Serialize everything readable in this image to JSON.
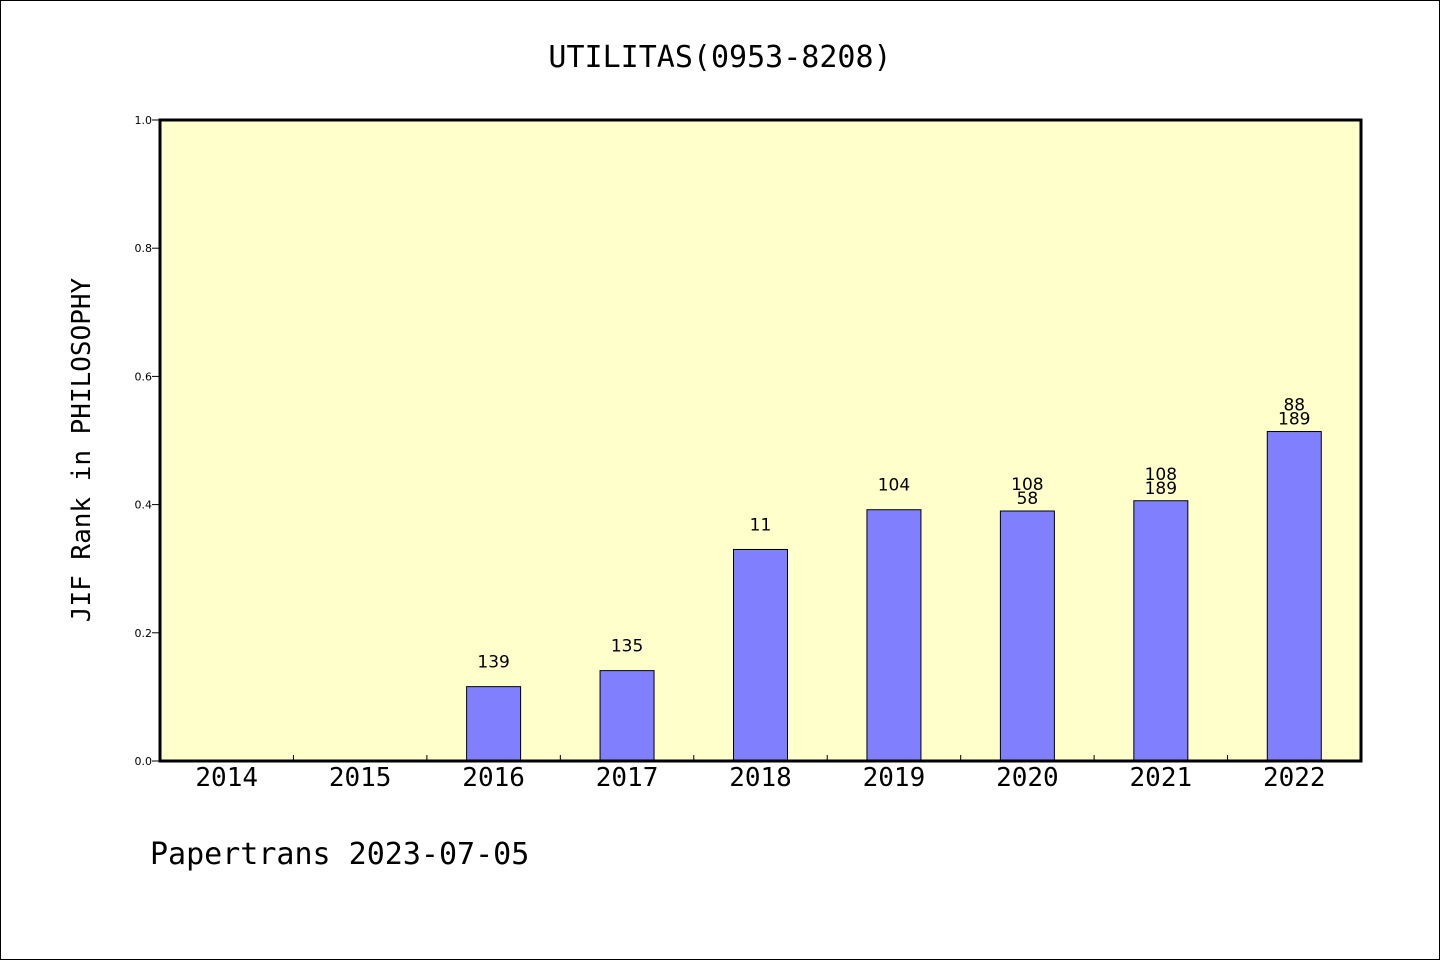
{
  "chart_data": {
    "type": "bar",
    "title": "UTILITAS(0953-8208)",
    "ylabel": "JIF Rank in PHILOSOPHY",
    "xlabel": "",
    "ylim": [
      0,
      1.0
    ],
    "yticks": [
      "0.0",
      "0.2",
      "0.4",
      "0.6",
      "0.8",
      "1.0"
    ],
    "categories": [
      "2014",
      "2015",
      "2016",
      "2017",
      "2018",
      "2019",
      "2020",
      "2021",
      "2022"
    ],
    "values": [
      null,
      null,
      0.116,
      0.141,
      0.33,
      0.392,
      0.39,
      0.406,
      0.514
    ],
    "labels": [
      [],
      [],
      [
        "139"
      ],
      [
        "135"
      ],
      [
        "11"
      ],
      [
        "104"
      ],
      [
        "108",
        "58"
      ],
      [
        "108",
        "189"
      ],
      [
        "88",
        "189"
      ]
    ],
    "grid": false,
    "colors": {
      "plot_background": "#ffffcc",
      "bar_fill": "#8080ff",
      "bar_stroke": "#000000"
    }
  },
  "footer": {
    "credit": "Papertrans 2023-07-05"
  }
}
